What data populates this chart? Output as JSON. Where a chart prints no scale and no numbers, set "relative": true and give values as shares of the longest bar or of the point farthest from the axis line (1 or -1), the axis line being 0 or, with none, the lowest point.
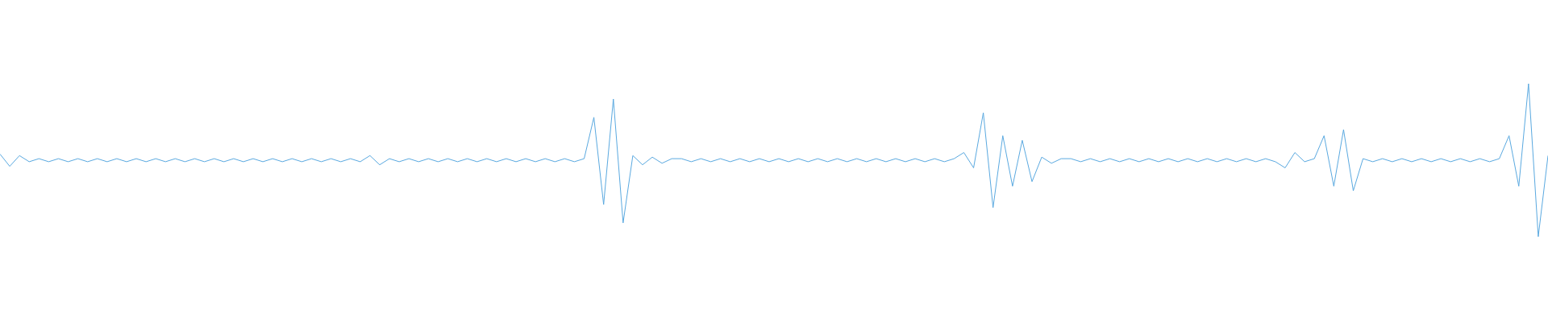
{
  "chart_data": {
    "type": "line",
    "relative": true,
    "color": "#5aa9e0",
    "categories": [
      null,
      null,
      null,
      null,
      null,
      null,
      null,
      null,
      null,
      null,
      null,
      null,
      null,
      null,
      null,
      null,
      null,
      null,
      null,
      null,
      null,
      null,
      null,
      null,
      null,
      null,
      null,
      null,
      null,
      null,
      null,
      null,
      null,
      null,
      null,
      null,
      null,
      null,
      null,
      null,
      null,
      null,
      null,
      null,
      null,
      null,
      null,
      null,
      null,
      null,
      null,
      null,
      null,
      null,
      null,
      null,
      null,
      null,
      null,
      null,
      null,
      null,
      null,
      null,
      null,
      null,
      null,
      null,
      null,
      null,
      null,
      null,
      null,
      null,
      null,
      null,
      null,
      null,
      null,
      null,
      null,
      null,
      null,
      null,
      null,
      null,
      null,
      null,
      null,
      null,
      null,
      null,
      null,
      null,
      null,
      null,
      null,
      null,
      null,
      null,
      null,
      null,
      null,
      null,
      null,
      null,
      null,
      null,
      null,
      null,
      null,
      null,
      null,
      null,
      null,
      null,
      null,
      null,
      null,
      null,
      null,
      null,
      null,
      null,
      null,
      null,
      null,
      null,
      null,
      null,
      null,
      null,
      null,
      null,
      null,
      null,
      null,
      null,
      null,
      null,
      null,
      null,
      null,
      null,
      null,
      null,
      null,
      null,
      null,
      null,
      null,
      null,
      null,
      null,
      null,
      null,
      null,
      null,
      null,
      null
    ],
    "values": [
      0.54,
      0.46,
      0.53,
      0.49,
      0.51,
      0.49,
      0.51,
      0.49,
      0.51,
      0.49,
      0.51,
      0.49,
      0.51,
      0.49,
      0.51,
      0.49,
      0.51,
      0.49,
      0.51,
      0.49,
      0.51,
      0.49,
      0.51,
      0.49,
      0.51,
      0.49,
      0.51,
      0.49,
      0.51,
      0.49,
      0.51,
      0.49,
      0.51,
      0.49,
      0.51,
      0.49,
      0.51,
      0.49,
      0.53,
      0.47,
      0.51,
      0.49,
      0.51,
      0.49,
      0.51,
      0.49,
      0.51,
      0.49,
      0.51,
      0.49,
      0.51,
      0.49,
      0.51,
      0.49,
      0.51,
      0.49,
      0.51,
      0.49,
      0.51,
      0.49,
      0.51,
      0.78,
      0.21,
      0.9,
      0.09,
      0.53,
      0.47,
      0.52,
      0.48,
      0.51,
      0.51,
      0.49,
      0.51,
      0.49,
      0.51,
      0.49,
      0.51,
      0.49,
      0.51,
      0.49,
      0.51,
      0.49,
      0.51,
      0.49,
      0.51,
      0.49,
      0.51,
      0.49,
      0.51,
      0.49,
      0.51,
      0.49,
      0.51,
      0.49,
      0.51,
      0.49,
      0.51,
      0.49,
      0.51,
      0.55,
      0.45,
      0.81,
      0.19,
      0.66,
      0.33,
      0.63,
      0.36,
      0.52,
      0.48,
      0.51,
      0.51,
      0.49,
      0.51,
      0.49,
      0.51,
      0.49,
      0.51,
      0.49,
      0.51,
      0.49,
      0.51,
      0.49,
      0.51,
      0.49,
      0.51,
      0.49,
      0.51,
      0.49,
      0.51,
      0.49,
      0.51,
      0.49,
      0.45,
      0.55,
      0.49,
      0.51,
      0.66,
      0.33,
      0.7,
      0.3,
      0.51,
      0.49,
      0.51,
      0.49,
      0.51,
      0.49,
      0.51,
      0.49,
      0.51,
      0.49,
      0.51,
      0.49,
      0.51,
      0.49,
      0.51,
      0.66,
      0.33,
      1,
      0,
      0.53
    ]
  }
}
